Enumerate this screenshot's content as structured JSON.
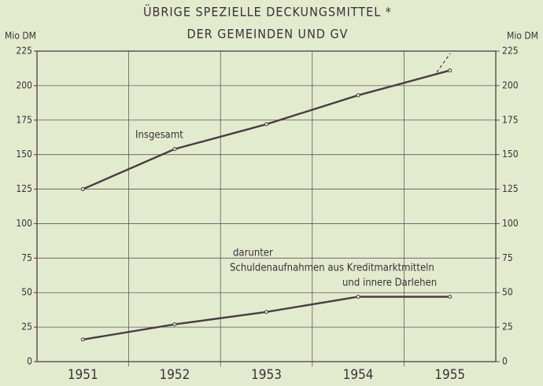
{
  "chart_data": {
    "type": "line",
    "title": [
      "ÜBRIGE SPEZIELLE DECKUNGSMITTEL *",
      "DER GEMEINDEN UND GV"
    ],
    "y_label": "Mio DM",
    "y2_label": "Mio DM",
    "categories": [
      "1951",
      "1952",
      "1953",
      "1954",
      "1955"
    ],
    "series": [
      {
        "name": "Insgesamt",
        "color": "#4a3c44",
        "values": [
          125,
          154,
          172,
          193,
          211
        ]
      },
      {
        "name": [
          "darunter",
          "Schuldenaufnahmen aus Kreditmarktmitteln",
          "und innere Darlehen"
        ],
        "color": "#4a3c44",
        "values": [
          16,
          27,
          36,
          47,
          47
        ]
      }
    ],
    "ylim": [
      0,
      225
    ],
    "yticks": [
      0,
      25,
      50,
      75,
      100,
      125,
      150,
      175,
      200,
      225
    ],
    "y2lim": [
      0,
      225
    ],
    "y2ticks": [
      0,
      25,
      50,
      75,
      100,
      125,
      150,
      175,
      200,
      225
    ],
    "grid": true
  }
}
